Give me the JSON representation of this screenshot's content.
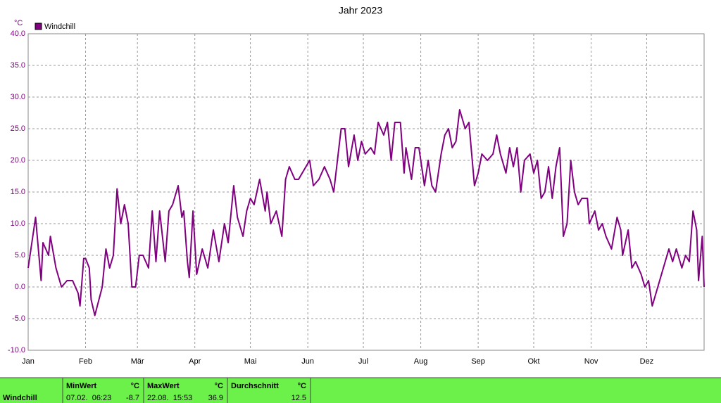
{
  "chart_data": {
    "type": "line",
    "title": "Jahr 2023",
    "y_unit": "°C",
    "x": [
      0,
      4,
      7,
      8,
      11,
      12,
      15,
      18,
      21,
      24,
      27,
      28,
      30,
      31,
      33,
      34,
      36,
      40,
      42,
      44,
      46,
      48,
      50,
      52,
      54,
      56,
      58,
      60,
      62,
      65,
      67,
      69,
      71,
      74,
      76,
      78,
      81,
      83,
      84,
      86,
      87,
      89,
      91,
      94,
      97,
      100,
      103,
      106,
      108,
      111,
      113,
      116,
      118,
      120,
      122,
      125,
      128,
      129,
      131,
      134,
      137,
      139,
      141,
      144,
      146,
      148,
      152,
      154,
      157,
      160,
      163,
      165,
      167,
      169,
      171,
      173,
      176,
      178,
      180,
      182,
      185,
      187,
      189,
      192,
      194,
      196,
      198,
      201,
      203,
      204,
      207,
      209,
      211,
      214,
      216,
      218,
      220,
      223,
      225,
      227,
      229,
      231,
      233,
      236,
      238,
      241,
      243,
      245,
      248,
      251,
      253,
      255,
      258,
      260,
      262,
      264,
      266,
      268,
      271,
      273,
      275,
      277,
      279,
      281,
      283,
      285,
      287,
      289,
      291,
      293,
      295,
      297,
      299,
      302,
      303,
      306,
      308,
      310,
      312,
      315,
      318,
      320,
      321,
      324,
      326,
      328,
      331,
      333,
      335,
      337,
      340,
      341,
      344,
      346,
      348,
      350,
      353,
      355,
      357,
      359,
      361,
      362,
      364,
      365
    ],
    "series": [
      {
        "name": "Windchill",
        "color": "#800080",
        "values": [
          3,
          11,
          1,
          7,
          5,
          8,
          3,
          0,
          1,
          1,
          -1,
          -3,
          4.5,
          4.5,
          3,
          -2,
          -4.5,
          0,
          6,
          3,
          5,
          15.5,
          10,
          13,
          10,
          0,
          0,
          5,
          5,
          3,
          12,
          4,
          12,
          4,
          12,
          13,
          16,
          11,
          12,
          4,
          1.5,
          12,
          2,
          6,
          3,
          9,
          4,
          10,
          7,
          16,
          11,
          8,
          12,
          14,
          13,
          17,
          12,
          15,
          10,
          12,
          8,
          17,
          19,
          17,
          17,
          18,
          20,
          16,
          17,
          19,
          17,
          15,
          20,
          25,
          25,
          19,
          24,
          20,
          23,
          21,
          22,
          21,
          26,
          24,
          26,
          20,
          26,
          26,
          18,
          22,
          17,
          22,
          22,
          16,
          20,
          16,
          15,
          21,
          24,
          25,
          22,
          23,
          28,
          25,
          26,
          16,
          18,
          21,
          20,
          21,
          24,
          21,
          18,
          22,
          19,
          22,
          15,
          20,
          21,
          18,
          20,
          14,
          15,
          19,
          14,
          19,
          22,
          8,
          10,
          20,
          15,
          13,
          14,
          14,
          10,
          12,
          9,
          10,
          8,
          6,
          11,
          9,
          5,
          9,
          3,
          4,
          2,
          0,
          1,
          -3,
          0,
          1,
          4,
          6,
          4,
          6,
          3,
          5,
          4,
          12,
          9,
          1,
          8,
          0
        ]
      }
    ],
    "xlim": [
      0,
      365
    ],
    "xticks": [
      {
        "value": 0,
        "label": "Jan"
      },
      {
        "value": 31,
        "label": "Feb"
      },
      {
        "value": 59,
        "label": "Mär"
      },
      {
        "value": 90,
        "label": "Apr"
      },
      {
        "value": 120,
        "label": "Mai"
      },
      {
        "value": 151,
        "label": "Jun"
      },
      {
        "value": 181,
        "label": "Jul"
      },
      {
        "value": 212,
        "label": "Aug"
      },
      {
        "value": 243,
        "label": "Sep"
      },
      {
        "value": 273,
        "label": "Okt"
      },
      {
        "value": 304,
        "label": "Nov"
      },
      {
        "value": 334,
        "label": "Dez"
      }
    ],
    "ylim": [
      -10,
      40
    ],
    "yticks": [
      {
        "value": -10,
        "label": "-10.0"
      },
      {
        "value": -5,
        "label": "-5.0"
      },
      {
        "value": 0,
        "label": "0.0"
      },
      {
        "value": 5,
        "label": "5.0"
      },
      {
        "value": 10,
        "label": "10.0"
      },
      {
        "value": 15,
        "label": "15.0"
      },
      {
        "value": 20,
        "label": "20.0"
      },
      {
        "value": 25,
        "label": "25.0"
      },
      {
        "value": 30,
        "label": "30.0"
      },
      {
        "value": 35,
        "label": "35.0"
      },
      {
        "value": 40,
        "label": "40.0"
      }
    ],
    "grid": true
  },
  "summary": {
    "row_label": "Windchill",
    "columns": [
      {
        "header": "MinWert",
        "unit": "°C",
        "time": "07.02.  06:23",
        "value": -8.7
      },
      {
        "header": "MaxWert",
        "unit": "°C",
        "time": "22.08.  15:53",
        "value": 36.9
      },
      {
        "header": "Durchschnitt",
        "unit": "°C",
        "value": 12.5
      }
    ]
  }
}
